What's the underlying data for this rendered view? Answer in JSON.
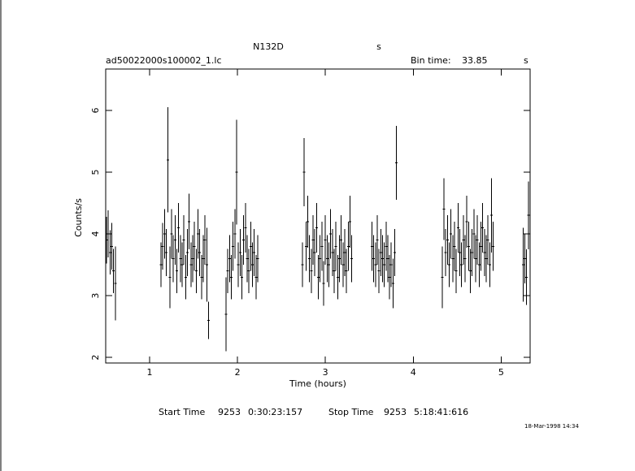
{
  "chart_data": {
    "type": "errorbar",
    "title": "N132D",
    "title_unit": "s",
    "file_name": "ad50022000s100002_1.lc",
    "bin_time_label": "Bin time:",
    "bin_time": "33.85",
    "bin_time_unit": "s",
    "x_label": "Time (hours)",
    "y_label": "Counts/s",
    "start_label": "Start Time",
    "start_day": "9253",
    "start_time": "0:30:23:157",
    "stop_label": "Stop Time",
    "stop_day": "9253",
    "stop_time": "5:18:41:616",
    "date_stamp": "18-Mar-1998 14:34",
    "color": "#000000",
    "xlim": [
      0.5,
      5.33
    ],
    "ylim": [
      1.91,
      6.67
    ],
    "xticks": [
      1,
      2,
      3,
      4,
      5
    ],
    "yticks": [
      2,
      3,
      4,
      5,
      6
    ],
    "x": [
      0.51,
      0.53,
      0.55,
      0.57,
      0.59,
      0.61,
      1.13,
      1.15,
      1.17,
      1.19,
      1.21,
      1.23,
      1.25,
      1.27,
      1.29,
      1.31,
      1.33,
      1.35,
      1.37,
      1.39,
      1.41,
      1.43,
      1.45,
      1.47,
      1.49,
      1.51,
      1.53,
      1.55,
      1.57,
      1.59,
      1.61,
      1.63,
      1.65,
      1.67,
      1.87,
      1.89,
      1.91,
      1.93,
      1.95,
      1.97,
      1.99,
      2.01,
      2.03,
      2.05,
      2.07,
      2.09,
      2.11,
      2.13,
      2.15,
      2.17,
      2.19,
      2.21,
      2.23,
      2.74,
      2.76,
      2.78,
      2.8,
      2.82,
      2.84,
      2.86,
      2.88,
      2.9,
      2.92,
      2.94,
      2.96,
      2.98,
      3.0,
      3.02,
      3.04,
      3.06,
      3.08,
      3.1,
      3.12,
      3.14,
      3.16,
      3.18,
      3.2,
      3.22,
      3.24,
      3.26,
      3.28,
      3.3,
      3.53,
      3.55,
      3.57,
      3.59,
      3.61,
      3.63,
      3.65,
      3.67,
      3.69,
      3.71,
      3.73,
      3.75,
      3.77,
      3.79,
      3.81,
      4.33,
      4.35,
      4.37,
      4.39,
      4.41,
      4.43,
      4.45,
      4.47,
      4.49,
      4.51,
      4.53,
      4.55,
      4.57,
      4.59,
      4.61,
      4.63,
      4.65,
      4.67,
      4.69,
      4.71,
      4.73,
      4.75,
      4.77,
      4.79,
      4.81,
      4.83,
      4.85,
      4.87,
      4.89,
      4.91,
      5.25,
      5.27,
      5.29,
      5.31
    ],
    "values": [
      3.9,
      4.0,
      3.7,
      3.8,
      3.4,
      3.2,
      3.5,
      3.8,
      4.0,
      3.7,
      5.2,
      3.3,
      4.0,
      3.6,
      3.9,
      3.4,
      4.1,
      3.6,
      3.5,
      3.9,
      3.3,
      3.7,
      4.2,
      3.5,
      3.6,
      3.8,
      3.4,
      4.0,
      3.7,
      3.3,
      3.6,
      3.9,
      3.5,
      2.6,
      2.7,
      3.4,
      3.6,
      3.3,
      3.8,
      4.0,
      5.0,
      3.5,
      3.7,
      3.3,
      3.9,
      4.1,
      3.6,
      3.4,
      3.8,
      3.5,
      3.7,
      3.3,
      3.6,
      3.5,
      5.0,
      3.8,
      4.2,
      3.6,
      3.4,
      3.9,
      3.7,
      4.1,
      3.3,
      3.6,
      3.8,
      3.2,
      3.9,
      3.6,
      3.5,
      4.0,
      3.7,
      3.4,
      3.8,
      3.3,
      3.6,
      3.9,
      3.5,
      3.7,
      3.4,
      3.8,
      4.2,
      3.6,
      3.8,
      3.6,
      3.5,
      3.9,
      3.4,
      3.7,
      3.6,
      3.5,
      3.8,
      3.6,
      3.3,
      3.5,
      3.2,
      3.7,
      5.15,
      3.3,
      4.4,
      3.7,
      3.9,
      3.5,
      4.0,
      3.6,
      3.8,
      3.4,
      4.1,
      3.7,
      3.5,
      3.9,
      3.6,
      4.2,
      3.8,
      3.4,
      3.7,
      4.0,
      3.6,
      3.9,
      3.5,
      3.8,
      4.1,
      3.7,
      3.6,
      3.9,
      3.5,
      4.3,
      3.8,
      3.5,
      3.6,
      3.3,
      4.3
    ],
    "errors": [
      0.38,
      0.38,
      0.36,
      0.38,
      0.36,
      0.6,
      0.36,
      0.38,
      0.4,
      0.38,
      0.85,
      0.5,
      0.4,
      0.38,
      0.4,
      0.36,
      0.4,
      0.38,
      0.36,
      0.4,
      0.36,
      0.38,
      0.45,
      0.36,
      0.38,
      0.4,
      0.36,
      0.4,
      0.38,
      0.36,
      0.38,
      0.4,
      0.6,
      0.3,
      0.6,
      0.36,
      0.38,
      0.36,
      0.4,
      0.4,
      0.85,
      0.36,
      0.38,
      0.36,
      0.4,
      0.4,
      0.38,
      0.36,
      0.4,
      0.36,
      0.38,
      0.36,
      0.38,
      0.36,
      0.55,
      0.4,
      0.42,
      0.38,
      0.36,
      0.4,
      0.38,
      0.4,
      0.36,
      0.38,
      0.4,
      0.36,
      0.4,
      0.38,
      0.36,
      0.4,
      0.38,
      0.36,
      0.4,
      0.36,
      0.38,
      0.4,
      0.36,
      0.38,
      0.36,
      0.4,
      0.42,
      0.38,
      0.4,
      0.38,
      0.36,
      0.4,
      0.36,
      0.38,
      0.38,
      0.36,
      0.4,
      0.38,
      0.36,
      0.36,
      0.4,
      0.38,
      0.6,
      0.5,
      0.5,
      0.38,
      0.4,
      0.36,
      0.4,
      0.38,
      0.4,
      0.36,
      0.4,
      0.38,
      0.36,
      0.4,
      0.38,
      0.42,
      0.4,
      0.36,
      0.38,
      0.4,
      0.38,
      0.4,
      0.36,
      0.4,
      0.4,
      0.38,
      0.38,
      0.4,
      0.36,
      0.6,
      0.4,
      0.6,
      0.4,
      0.45,
      0.55
    ]
  }
}
